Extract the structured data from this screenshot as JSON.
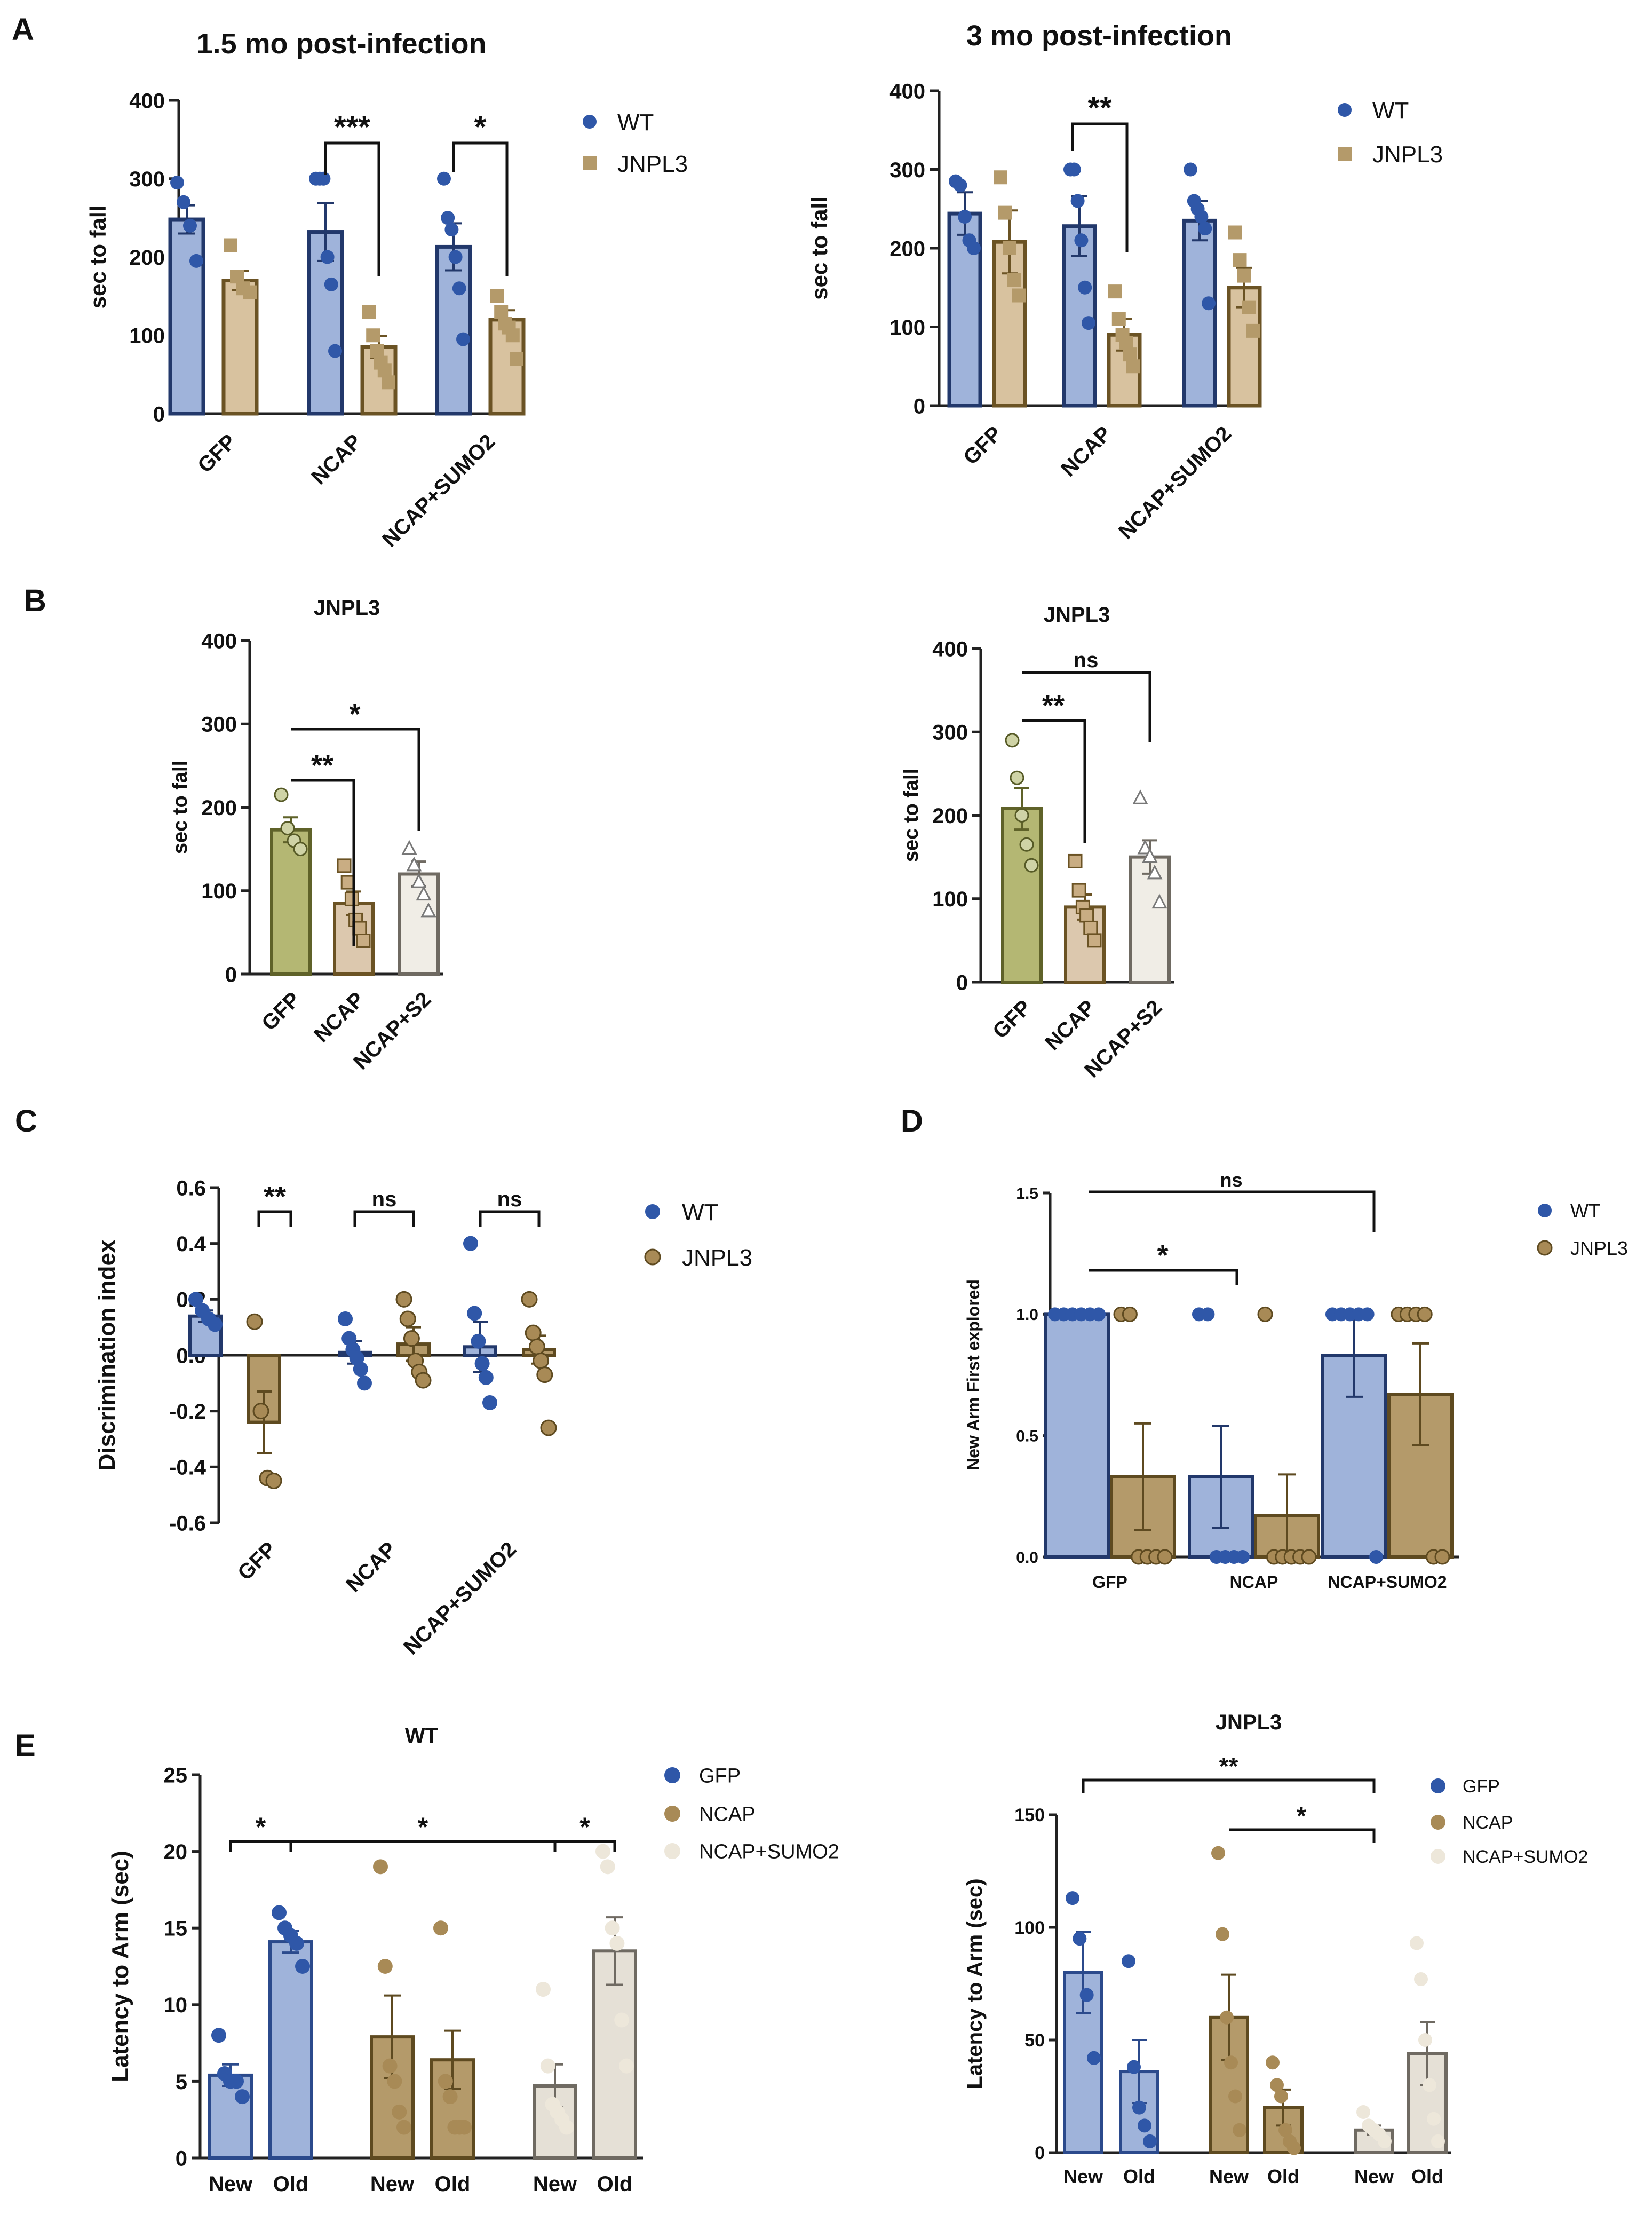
{
  "colors": {
    "wt_bar": "#9fb3da",
    "wt_edge": "#22386b",
    "wt_dot": "#2f57a8",
    "jn_bar": "#d8c29f",
    "jn_edge": "#6b5324",
    "jn_dot": "#b49a6a",
    "gfp_b": "#b4b773",
    "ncap_b": "#dcc8ae",
    "s2_b": "#f0ede6",
    "brown_bar": "#b49a6a",
    "brown_edge": "#5e4a20",
    "brown_dot": "#a88a56",
    "pale_bar": "#e5e0d6",
    "pale_edge": "#6f6a62",
    "pale_dot": "#ede7da",
    "blue_edge": "#2b4a8c",
    "blue_dot": "#2f57a8"
  },
  "panel_letters": {
    "a": "A",
    "b": "B",
    "c": "C",
    "d": "D",
    "e": "E"
  },
  "chart_data": [
    {
      "id": "A1",
      "type": "bar",
      "title": "1.5 mo post-infection",
      "xlabel": "",
      "ylabel": "sec to fall",
      "ylim": [
        0,
        400
      ],
      "yticks": [
        "0",
        "100",
        "200",
        "300",
        "400"
      ],
      "categories": [
        "GFP",
        "NCAP",
        "NCAP+SUMO2"
      ],
      "legend": {
        "position": "top-right",
        "entries": [
          "WT",
          "JNPL3"
        ]
      },
      "series": [
        {
          "name": "WT",
          "values": [
            248,
            232,
            213
          ],
          "sem": [
            18,
            37,
            30
          ],
          "points": [
            [
              295,
              270,
              240,
              195
            ],
            [
              300,
              300,
              300,
              200,
              165,
              80
            ],
            [
              300,
              250,
              235,
              200,
              160,
              95
            ]
          ]
        },
        {
          "name": "JNPL3",
          "values": [
            170,
            85,
            120
          ],
          "sem": [
            12,
            14,
            12
          ],
          "points": [
            [
              215,
              175,
              160,
              155
            ],
            [
              130,
              100,
              80,
              65,
              55,
              40
            ],
            [
              150,
              130,
              115,
              110,
              100,
              70
            ]
          ]
        }
      ],
      "significance": [
        {
          "group": "NCAP",
          "label": "***"
        },
        {
          "group": "NCAP+SUMO2",
          "label": "*"
        }
      ]
    },
    {
      "id": "A2",
      "type": "bar",
      "title": "3 mo post-infection",
      "xlabel": "",
      "ylabel": "sec to fall",
      "ylim": [
        0,
        400
      ],
      "yticks": [
        "0",
        "100",
        "200",
        "300",
        "400"
      ],
      "categories": [
        "GFP",
        "NCAP",
        "NCAP+SUMO2"
      ],
      "legend": {
        "position": "top-right",
        "entries": [
          "WT",
          "JNPL3"
        ]
      },
      "series": [
        {
          "name": "WT",
          "values": [
            244,
            228,
            235
          ],
          "sem": [
            27,
            38,
            25
          ],
          "points": [
            [
              285,
              280,
              240,
              210,
              200
            ],
            [
              300,
              300,
              260,
              210,
              150,
              105
            ],
            [
              300,
              260,
              250,
              240,
              225,
              130
            ]
          ]
        },
        {
          "name": "JNPL3",
          "values": [
            208,
            90,
            150
          ],
          "sem": [
            40,
            20,
            25
          ],
          "points": [
            [
              290,
              245,
              200,
              160,
              140
            ],
            [
              145,
              110,
              90,
              80,
              65,
              50
            ],
            [
              220,
              185,
              165,
              125,
              95
            ]
          ]
        }
      ],
      "significance": [
        {
          "group": "NCAP",
          "label": "**"
        }
      ]
    },
    {
      "id": "B1",
      "type": "bar",
      "title": "JNPL3",
      "xlabel": "",
      "ylabel": "sec to fall",
      "ylim": [
        0,
        400
      ],
      "yticks": [
        "0",
        "100",
        "200",
        "300",
        "400"
      ],
      "categories": [
        "GFP",
        "NCAP",
        "NCAP+S2"
      ],
      "values": [
        173,
        85,
        120
      ],
      "sem": [
        15,
        14,
        15
      ],
      "points": [
        [
          215,
          175,
          160,
          150
        ],
        [
          130,
          110,
          90,
          65,
          55,
          40
        ],
        [
          150,
          130,
          110,
          95,
          75
        ]
      ],
      "significance": [
        {
          "pair": [
            "GFP",
            "NCAP"
          ],
          "label": "**"
        },
        {
          "pair": [
            "GFP",
            "NCAP+S2"
          ],
          "label": "*"
        }
      ]
    },
    {
      "id": "B2",
      "type": "bar",
      "title": "JNPL3",
      "xlabel": "",
      "ylabel": "sec to fall",
      "ylim": [
        0,
        400
      ],
      "yticks": [
        "0",
        "100",
        "200",
        "300",
        "400"
      ],
      "categories": [
        "GFP",
        "NCAP",
        "NCAP+S2"
      ],
      "values": [
        208,
        90,
        150
      ],
      "sem": [
        25,
        15,
        20
      ],
      "points": [
        [
          290,
          245,
          200,
          165,
          140
        ],
        [
          145,
          110,
          90,
          80,
          65,
          50
        ],
        [
          220,
          160,
          150,
          130,
          95
        ]
      ],
      "significance": [
        {
          "pair": [
            "GFP",
            "NCAP"
          ],
          "label": "**"
        },
        {
          "pair": [
            "GFP",
            "NCAP+S2"
          ],
          "label": "ns"
        }
      ]
    },
    {
      "id": "C",
      "type": "bar",
      "title": "",
      "xlabel": "",
      "ylabel": "Discrimination index",
      "ylim": [
        -0.6,
        0.6
      ],
      "yticks": [
        "-0.6",
        "-0.4",
        "-0.2",
        "0.0",
        "0.2",
        "0.4",
        "0.6"
      ],
      "categories": [
        "GFP",
        "NCAP",
        "NCAP+SUMO2"
      ],
      "legend": {
        "position": "top-right",
        "entries": [
          "WT",
          "JNPL3"
        ]
      },
      "series": [
        {
          "name": "WT",
          "values": [
            0.14,
            0.01,
            0.03
          ],
          "sem": [
            0.02,
            0.04,
            0.09
          ],
          "points": [
            [
              0.2,
              0.16,
              0.13,
              0.11
            ],
            [
              0.13,
              0.06,
              0.02,
              -0.01,
              -0.05,
              -0.1
            ],
            [
              0.4,
              0.15,
              0.05,
              -0.03,
              -0.08,
              -0.17
            ]
          ]
        },
        {
          "name": "JNPL3",
          "values": [
            -0.24,
            0.04,
            0.02
          ],
          "sem": [
            0.11,
            0.06,
            0.05
          ],
          "points": [
            [
              0.12,
              -0.2,
              -0.44,
              -0.45
            ],
            [
              0.2,
              0.13,
              0.06,
              -0.02,
              -0.06,
              -0.09
            ],
            [
              0.2,
              0.08,
              0.03,
              -0.02,
              -0.07,
              -0.26
            ]
          ]
        }
      ],
      "significance": [
        {
          "group": "GFP",
          "label": "**"
        },
        {
          "group": "NCAP",
          "label": "ns"
        },
        {
          "group": "NCAP+SUMO2",
          "label": "ns"
        }
      ]
    },
    {
      "id": "D",
      "type": "bar",
      "title": "",
      "xlabel": "",
      "ylabel": "New Arm First explored",
      "ylim": [
        0,
        1.5
      ],
      "yticks": [
        "0.0",
        "0.5",
        "1.0",
        "1.5"
      ],
      "categories": [
        "GFP",
        "NCAP",
        "NCAP+SUMO2"
      ],
      "legend": {
        "position": "top-right",
        "entries": [
          "WT",
          "JNPL3"
        ]
      },
      "series": [
        {
          "name": "WT",
          "values": [
            1.0,
            0.33,
            0.83
          ],
          "sem": [
            0.0,
            0.21,
            0.17
          ],
          "points": [
            [
              1,
              1,
              1,
              1,
              1,
              1
            ],
            [
              1,
              1,
              0,
              0,
              0,
              0
            ],
            [
              1,
              1,
              1,
              1,
              1,
              0
            ]
          ]
        },
        {
          "name": "JNPL3",
          "values": [
            0.33,
            0.17,
            0.67
          ],
          "sem": [
            0.22,
            0.17,
            0.21
          ],
          "points": [
            [
              1,
              1,
              0,
              0,
              0,
              0
            ],
            [
              1,
              0,
              0,
              0,
              0,
              0
            ],
            [
              1,
              1,
              1,
              1,
              0,
              0
            ]
          ]
        }
      ],
      "significance": [
        {
          "pair": [
            "GFP",
            "NCAP"
          ],
          "label": "*"
        },
        {
          "pair": [
            "GFP",
            "NCAP+SUMO2"
          ],
          "label": "ns"
        }
      ]
    },
    {
      "id": "E1",
      "type": "bar",
      "title": "WT",
      "xlabel": "",
      "ylabel": "Latency to Arm (sec)",
      "ylim": [
        0,
        25
      ],
      "yticks": [
        "0",
        "5",
        "10",
        "15",
        "20",
        "25"
      ],
      "legend": {
        "position": "top-right",
        "entries": [
          "GFP",
          "NCAP",
          "NCAP+SUMO2"
        ]
      },
      "categories": [
        "New",
        "Old",
        "New",
        "Old",
        "New",
        "Old"
      ],
      "groups": [
        "GFP",
        "GFP",
        "NCAP",
        "NCAP",
        "NCAP+SUMO2",
        "NCAP+SUMO2"
      ],
      "values": [
        5.4,
        14.1,
        7.9,
        6.4,
        4.7,
        13.5
      ],
      "sem": [
        0.7,
        0.7,
        2.7,
        1.9,
        1.4,
        2.2
      ],
      "points": [
        [
          8,
          5.5,
          5,
          5,
          4
        ],
        [
          16,
          15,
          14.5,
          14,
          12.5
        ],
        [
          19,
          12.5,
          6,
          5,
          3,
          2
        ],
        [
          15,
          5,
          4,
          2,
          2,
          2
        ],
        [
          11,
          6,
          3.5,
          3,
          2.5,
          2
        ],
        [
          20,
          19,
          15,
          14,
          9,
          6
        ]
      ],
      "significance": [
        {
          "pair": [
            0,
            1
          ],
          "label": "*"
        },
        {
          "pair": [
            1,
            4
          ],
          "label": "*"
        },
        {
          "pair": [
            4,
            5
          ],
          "label": "*"
        }
      ]
    },
    {
      "id": "E2",
      "type": "bar",
      "title": "JNPL3",
      "xlabel": "",
      "ylabel": "Latency to Arm (sec)",
      "ylim": [
        0,
        150
      ],
      "yticks": [
        "0",
        "50",
        "100",
        "150"
      ],
      "legend": {
        "position": "top-right",
        "entries": [
          "GFP",
          "NCAP",
          "NCAP+SUMO2"
        ]
      },
      "categories": [
        "New",
        "Old",
        "New",
        "Old",
        "New",
        "Old"
      ],
      "groups": [
        "GFP",
        "GFP",
        "NCAP",
        "NCAP",
        "NCAP+SUMO2",
        "NCAP+SUMO2"
      ],
      "values": [
        80,
        36,
        60,
        20,
        10,
        44
      ],
      "sem": [
        18,
        14,
        19,
        8,
        2,
        14
      ],
      "points": [
        [
          113,
          95,
          70,
          42
        ],
        [
          85,
          38,
          20,
          12,
          5
        ],
        [
          133,
          97,
          60,
          40,
          25,
          10
        ],
        [
          40,
          30,
          25,
          10,
          5,
          2
        ],
        [
          18,
          12,
          10,
          8,
          5
        ],
        [
          93,
          77,
          50,
          30,
          15,
          5
        ]
      ],
      "significance": [
        {
          "pair": [
            0,
            4
          ],
          "label": "**"
        },
        {
          "pair": [
            2,
            4
          ],
          "label": "*"
        }
      ]
    }
  ]
}
